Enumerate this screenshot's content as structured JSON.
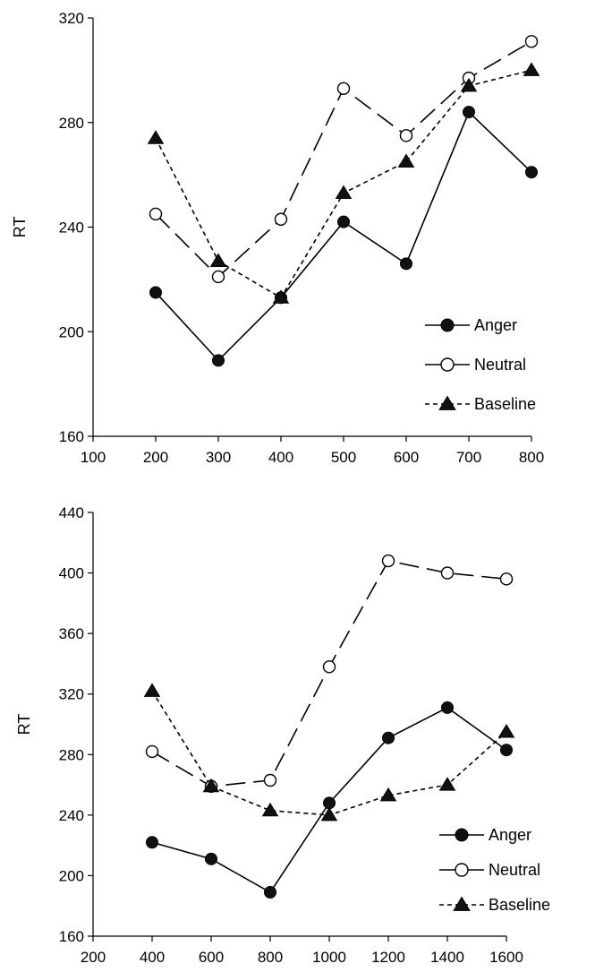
{
  "chart_data": [
    {
      "type": "line",
      "title": "",
      "xlabel": "",
      "ylabel": "RT",
      "xlim": [
        100,
        800
      ],
      "ylim": [
        160,
        320
      ],
      "x_ticks": [
        "100",
        "200",
        "300",
        "400",
        "500",
        "600",
        "700",
        "800"
      ],
      "y_ticks": [
        "160",
        "200",
        "240",
        "280",
        "320"
      ],
      "grid": false,
      "legend_position": "lower-right",
      "x": [
        200,
        300,
        400,
        500,
        600,
        700,
        800
      ],
      "series": [
        {
          "name": "Anger",
          "marker": "filled-circle",
          "line": "solid",
          "values": [
            215,
            189,
            213,
            242,
            226,
            284,
            261
          ]
        },
        {
          "name": "Neutral",
          "marker": "open-circle",
          "line": "long-dash",
          "values": [
            245,
            221,
            243,
            293,
            275,
            297,
            311
          ]
        },
        {
          "name": "Baseline",
          "marker": "filled-triangle",
          "line": "short-dash",
          "values": [
            274,
            227,
            213,
            253,
            265,
            294,
            300
          ]
        }
      ]
    },
    {
      "type": "line",
      "title": "",
      "xlabel": "",
      "ylabel": "RT",
      "xlim": [
        200,
        1600
      ],
      "ylim": [
        160,
        440
      ],
      "x_ticks": [
        "200",
        "400",
        "600",
        "800",
        "1000",
        "1200",
        "1400",
        "1600"
      ],
      "y_ticks": [
        "160",
        "200",
        "240",
        "280",
        "320",
        "360",
        "400",
        "440"
      ],
      "grid": false,
      "legend_position": "lower-right",
      "x": [
        400,
        600,
        800,
        1000,
        1200,
        1400,
        1600
      ],
      "series": [
        {
          "name": "Anger",
          "marker": "filled-circle",
          "line": "solid",
          "values": [
            222,
            211,
            189,
            248,
            291,
            311,
            283
          ]
        },
        {
          "name": "Neutral",
          "marker": "open-circle",
          "line": "long-dash",
          "values": [
            282,
            259,
            263,
            338,
            408,
            400,
            396
          ]
        },
        {
          "name": "Baseline",
          "marker": "filled-triangle",
          "line": "short-dash",
          "values": [
            322,
            259,
            243,
            240,
            253,
            260,
            295
          ]
        }
      ]
    }
  ]
}
